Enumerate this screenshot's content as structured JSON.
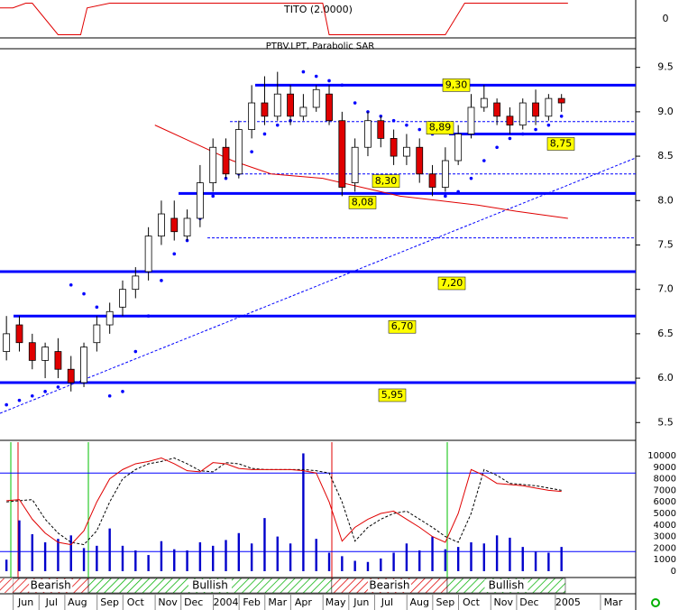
{
  "chart_data": {
    "type": "candlestick",
    "title": "PTBV.LPT, Parabolic SAR",
    "xlim": [
      0,
      98.5
    ],
    "xticks": [
      {
        "value": 4,
        "label": "Jun"
      },
      {
        "value": 8,
        "label": "Jul"
      },
      {
        "value": 12,
        "label": "Aug"
      },
      {
        "value": 17,
        "label": "Sep"
      },
      {
        "value": 21,
        "label": "Oct"
      },
      {
        "value": 26,
        "label": "Nov"
      },
      {
        "value": 30,
        "label": "Dec"
      },
      {
        "value": 35,
        "label": "2004"
      },
      {
        "value": 39,
        "label": "Feb"
      },
      {
        "value": 43,
        "label": "Mar"
      },
      {
        "value": 47,
        "label": "Apr"
      },
      {
        "value": 52,
        "label": "May"
      },
      {
        "value": 56,
        "label": "Jun"
      },
      {
        "value": 60,
        "label": "Jul"
      },
      {
        "value": 65,
        "label": "Aug"
      },
      {
        "value": 69,
        "label": "Sep"
      },
      {
        "value": 73,
        "label": "Oct"
      },
      {
        "value": 78,
        "label": "Nov"
      },
      {
        "value": 82,
        "label": "Dec"
      },
      {
        "value": 88,
        "label": "2005"
      },
      {
        "value": 95,
        "label": "Mar"
      }
    ],
    "ylim": [
      5.33,
      9.7
    ],
    "yticks": [
      9.5,
      {
        "value": 9,
        "label": "9.0"
      },
      8.5,
      {
        "value": 8,
        "label": "8.0"
      },
      7.5,
      {
        "value": 7,
        "label": "7.0"
      },
      6.5,
      {
        "value": 6,
        "label": "6.0"
      },
      5.5
    ],
    "x": [
      1,
      3,
      5,
      7,
      9,
      11,
      13,
      15,
      17,
      19,
      21,
      23,
      25,
      27,
      29,
      31,
      33,
      35,
      37,
      39,
      41,
      43,
      45,
      47,
      49,
      51,
      53,
      55,
      57,
      59,
      61,
      63,
      65,
      67,
      69,
      71,
      73,
      75,
      77,
      79,
      81,
      83,
      85,
      87
    ],
    "open": [
      6.3,
      6.6,
      6.4,
      6.2,
      6.3,
      6.1,
      5.95,
      6.4,
      6.6,
      6.8,
      7.0,
      7.2,
      7.6,
      7.8,
      7.6,
      7.8,
      8.2,
      8.6,
      8.3,
      8.8,
      9.1,
      8.95,
      9.2,
      8.95,
      9.05,
      9.2,
      8.9,
      8.2,
      8.6,
      8.9,
      8.7,
      8.5,
      8.6,
      8.3,
      8.15,
      8.45,
      8.75,
      9.05,
      9.1,
      8.95,
      8.85,
      9.1,
      8.95,
      9.15
    ],
    "high": [
      6.7,
      6.7,
      6.5,
      6.4,
      6.45,
      6.25,
      6.4,
      6.7,
      6.85,
      7.1,
      7.25,
      7.7,
      8.0,
      8.0,
      7.9,
      8.4,
      8.7,
      8.7,
      8.9,
      9.3,
      9.4,
      9.45,
      9.3,
      9.2,
      9.3,
      9.3,
      9.0,
      8.7,
      9.0,
      8.95,
      8.8,
      8.75,
      8.7,
      8.4,
      8.6,
      8.85,
      9.2,
      9.3,
      9.15,
      9.05,
      9.15,
      9.25,
      9.2,
      9.2
    ],
    "low": [
      6.2,
      6.3,
      6.1,
      6.0,
      6.0,
      5.85,
      5.9,
      6.3,
      6.5,
      6.7,
      6.9,
      7.1,
      7.5,
      7.55,
      7.55,
      7.7,
      8.1,
      8.25,
      8.25,
      8.7,
      8.85,
      8.9,
      8.85,
      8.9,
      9.0,
      8.85,
      8.05,
      8.1,
      8.5,
      8.6,
      8.4,
      8.4,
      8.2,
      8.05,
      8.1,
      8.4,
      8.7,
      9.0,
      8.85,
      8.75,
      8.8,
      8.85,
      8.9,
      9.0
    ],
    "close": [
      6.5,
      6.4,
      6.2,
      6.35,
      6.1,
      5.95,
      6.35,
      6.6,
      6.75,
      7.0,
      7.15,
      7.6,
      7.85,
      7.65,
      7.8,
      8.2,
      8.6,
      8.3,
      8.8,
      9.1,
      8.95,
      9.2,
      8.95,
      9.05,
      9.25,
      8.9,
      8.15,
      8.6,
      8.9,
      8.7,
      8.5,
      8.6,
      8.3,
      8.15,
      8.45,
      8.75,
      9.05,
      9.15,
      8.95,
      8.85,
      9.1,
      8.95,
      9.15,
      9.1
    ],
    "up_color": "#ffffff",
    "down_color": "#e00000",
    "sar": {
      "color": "#0000ff",
      "values": [
        5.7,
        5.75,
        5.8,
        5.85,
        5.9,
        7.05,
        6.95,
        6.8,
        5.8,
        5.85,
        6.3,
        6.7,
        7.1,
        7.4,
        7.55,
        7.8,
        8.05,
        8.25,
        8.3,
        8.55,
        8.75,
        8.85,
        8.9,
        9.45,
        9.4,
        9.35,
        9.3,
        9.1,
        9.0,
        8.95,
        8.9,
        8.85,
        8.8,
        8.75,
        8.05,
        8.1,
        8.25,
        8.45,
        8.6,
        8.7,
        8.75,
        8.8,
        8.85,
        8.95
      ]
    },
    "moving_average": {
      "color": "#e00000",
      "x": [
        24,
        30,
        36,
        42,
        50,
        56,
        62,
        68,
        74,
        80,
        88
      ],
      "values": [
        8.85,
        8.65,
        8.45,
        8.3,
        8.25,
        8.15,
        8.05,
        8.0,
        7.95,
        7.88,
        7.8
      ]
    },
    "levels": [
      {
        "value": 9.3,
        "label": "9,30",
        "style": "solid"
      },
      {
        "value": 8.89,
        "label": "8,89",
        "style": "dashed"
      },
      {
        "value": 8.75,
        "label": "8,75",
        "style": "solid"
      },
      {
        "value": 8.3,
        "label": "8,30",
        "style": "dashed"
      },
      {
        "value": 8.08,
        "label": "8,08",
        "style": "solid"
      },
      {
        "value": 7.58,
        "style": "dashed"
      },
      {
        "value": 7.2,
        "label": "7,20",
        "style": "solid"
      },
      {
        "value": 6.7,
        "label": "6,70",
        "style": "solid"
      },
      {
        "value": 5.95,
        "label": "5,95",
        "style": "solid"
      }
    ],
    "level_color": "#0000ff",
    "label_color": "#ffff00",
    "tito": {
      "title": "TITO (2.0000)",
      "color": "#e00000",
      "ylim": [
        -1.2,
        1.2
      ],
      "yticks": [
        0
      ],
      "x": [
        0,
        2,
        4,
        5,
        9,
        12.5,
        13.5,
        17,
        50,
        51,
        69,
        72,
        88
      ],
      "values": [
        0.7,
        0.7,
        1,
        1,
        -1,
        -1,
        0.7,
        1,
        1,
        -1,
        -1,
        1,
        1
      ]
    },
    "lower": {
      "ylim": [
        0,
        10000
      ],
      "yticks": [
        10000,
        9000,
        8000,
        7000,
        6000,
        5000,
        4000,
        3000,
        2000,
        1000,
        0
      ],
      "volume": {
        "color": "#0000cc",
        "values": [
          1000,
          4400,
          3200,
          2500,
          2800,
          3100,
          2000,
          2200,
          3700,
          2200,
          1800,
          1400,
          2600,
          1900,
          1800,
          2500,
          2200,
          2700,
          3300,
          2400,
          4600,
          3000,
          2400,
          10200,
          2800,
          1600,
          1300,
          900,
          800,
          1100,
          1600,
          2400,
          1800,
          3000,
          1900,
          2100,
          2500,
          2400,
          3100,
          2900,
          2100,
          1700,
          1600,
          2100
        ]
      },
      "oscillator": {
        "color": "#e00000",
        "values": [
          6100,
          6200,
          4500,
          3300,
          2500,
          2300,
          3500,
          6000,
          8000,
          8800,
          9300,
          9500,
          9800,
          9300,
          8700,
          8600,
          9400,
          9300,
          8900,
          8800,
          8800,
          8800,
          8800,
          8700,
          8500,
          6000,
          2600,
          3800,
          4500,
          5000,
          5200,
          4500,
          3800,
          3000,
          2500,
          5000,
          8800,
          8300,
          7600,
          7500,
          7400,
          7200,
          7000,
          6900
        ]
      },
      "signal": {
        "color": "#000000",
        "values": [
          6000,
          6100,
          6200,
          4500,
          3300,
          2500,
          2300,
          3500,
          6000,
          8000,
          8800,
          9300,
          9500,
          9800,
          9300,
          8700,
          8600,
          9400,
          9300,
          8900,
          8800,
          8800,
          8800,
          8800,
          8700,
          8500,
          6000,
          2600,
          3800,
          4500,
          5000,
          5200,
          4500,
          3800,
          3000,
          2500,
          5000,
          8800,
          8300,
          7600,
          7500,
          7400,
          7200,
          7000
        ]
      },
      "bands": [
        8500,
        1700
      ],
      "band_color": "#0000ff"
    },
    "regimes": [
      {
        "label": "Bearish",
        "start": 2,
        "end": 13.7
      },
      {
        "label": "Bullish",
        "start": 13.7,
        "end": 51.4
      },
      {
        "label": "Bearish",
        "start": 51.4,
        "end": 69.3
      },
      {
        "label": "Bullish",
        "start": 69.3,
        "end": 87.6
      }
    ]
  }
}
